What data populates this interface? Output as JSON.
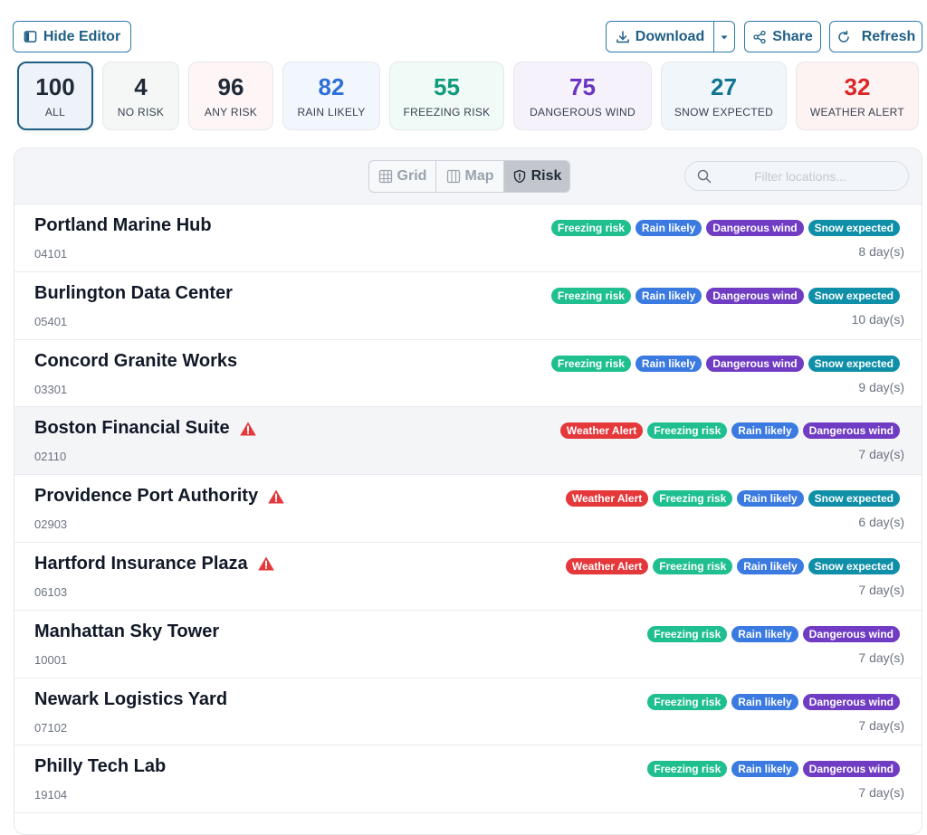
{
  "toolbar": {
    "hide_editor_label": "Hide Editor",
    "download_label": "Download",
    "share_label": "Share",
    "refresh_label": "Refresh"
  },
  "stats": [
    {
      "value": "100",
      "label": "ALL",
      "color": "#111827"
    },
    {
      "value": "4",
      "label": "NO RISK",
      "color": "#111827"
    },
    {
      "value": "96",
      "label": "ANY RISK",
      "color": "#111827"
    },
    {
      "value": "82",
      "label": "RAIN LIKELY",
      "color": "#2f6fd6"
    },
    {
      "value": "55",
      "label": "FREEZING RISK",
      "color": "#0f9b7a"
    },
    {
      "value": "75",
      "label": "DANGEROUS WIND",
      "color": "#6a35c2"
    },
    {
      "value": "27",
      "label": "SNOW EXPECTED",
      "color": "#0e7490"
    },
    {
      "value": "32",
      "label": "WEATHER ALERT",
      "color": "#dc2626"
    }
  ],
  "view_toggle": {
    "grid_label": "Grid",
    "map_label": "Map",
    "risk_label": "Risk",
    "selected": "Risk"
  },
  "search": {
    "placeholder": "Filter locations..."
  },
  "tag_colors": {
    "Weather Alert": "#e5383b",
    "Freezing risk": "#1fbf8f",
    "Rain likely": "#3b7ae0",
    "Dangerous wind": "#6f3cc3",
    "Snow expected": "#0f8fa8"
  },
  "locations": [
    {
      "name": "Portland Marine Hub",
      "code": "04101",
      "days": "8 day(s)",
      "alert": false,
      "tags": [
        "Freezing risk",
        "Rain likely",
        "Dangerous wind",
        "Snow expected"
      ]
    },
    {
      "name": "Burlington Data Center",
      "code": "05401",
      "days": "10 day(s)",
      "alert": false,
      "tags": [
        "Freezing risk",
        "Rain likely",
        "Dangerous wind",
        "Snow expected"
      ]
    },
    {
      "name": "Concord Granite Works",
      "code": "03301",
      "days": "9 day(s)",
      "alert": false,
      "tags": [
        "Freezing risk",
        "Rain likely",
        "Dangerous wind",
        "Snow expected"
      ]
    },
    {
      "name": "Boston Financial Suite",
      "code": "02110",
      "days": "7 day(s)",
      "alert": true,
      "tags": [
        "Weather Alert",
        "Freezing risk",
        "Rain likely",
        "Dangerous wind"
      ]
    },
    {
      "name": "Providence Port Authority",
      "code": "02903",
      "days": "6 day(s)",
      "alert": true,
      "tags": [
        "Weather Alert",
        "Freezing risk",
        "Rain likely",
        "Snow expected"
      ]
    },
    {
      "name": "Hartford Insurance Plaza",
      "code": "06103",
      "days": "7 day(s)",
      "alert": true,
      "tags": [
        "Weather Alert",
        "Freezing risk",
        "Rain likely",
        "Snow expected"
      ]
    },
    {
      "name": "Manhattan Sky Tower",
      "code": "10001",
      "days": "7 day(s)",
      "alert": false,
      "tags": [
        "Freezing risk",
        "Rain likely",
        "Dangerous wind"
      ]
    },
    {
      "name": "Newark Logistics Yard",
      "code": "07102",
      "days": "7 day(s)",
      "alert": false,
      "tags": [
        "Freezing risk",
        "Rain likely",
        "Dangerous wind"
      ]
    },
    {
      "name": "Philly Tech Lab",
      "code": "19104",
      "days": "7 day(s)",
      "alert": false,
      "tags": [
        "Freezing risk",
        "Rain likely",
        "Dangerous wind"
      ]
    }
  ]
}
